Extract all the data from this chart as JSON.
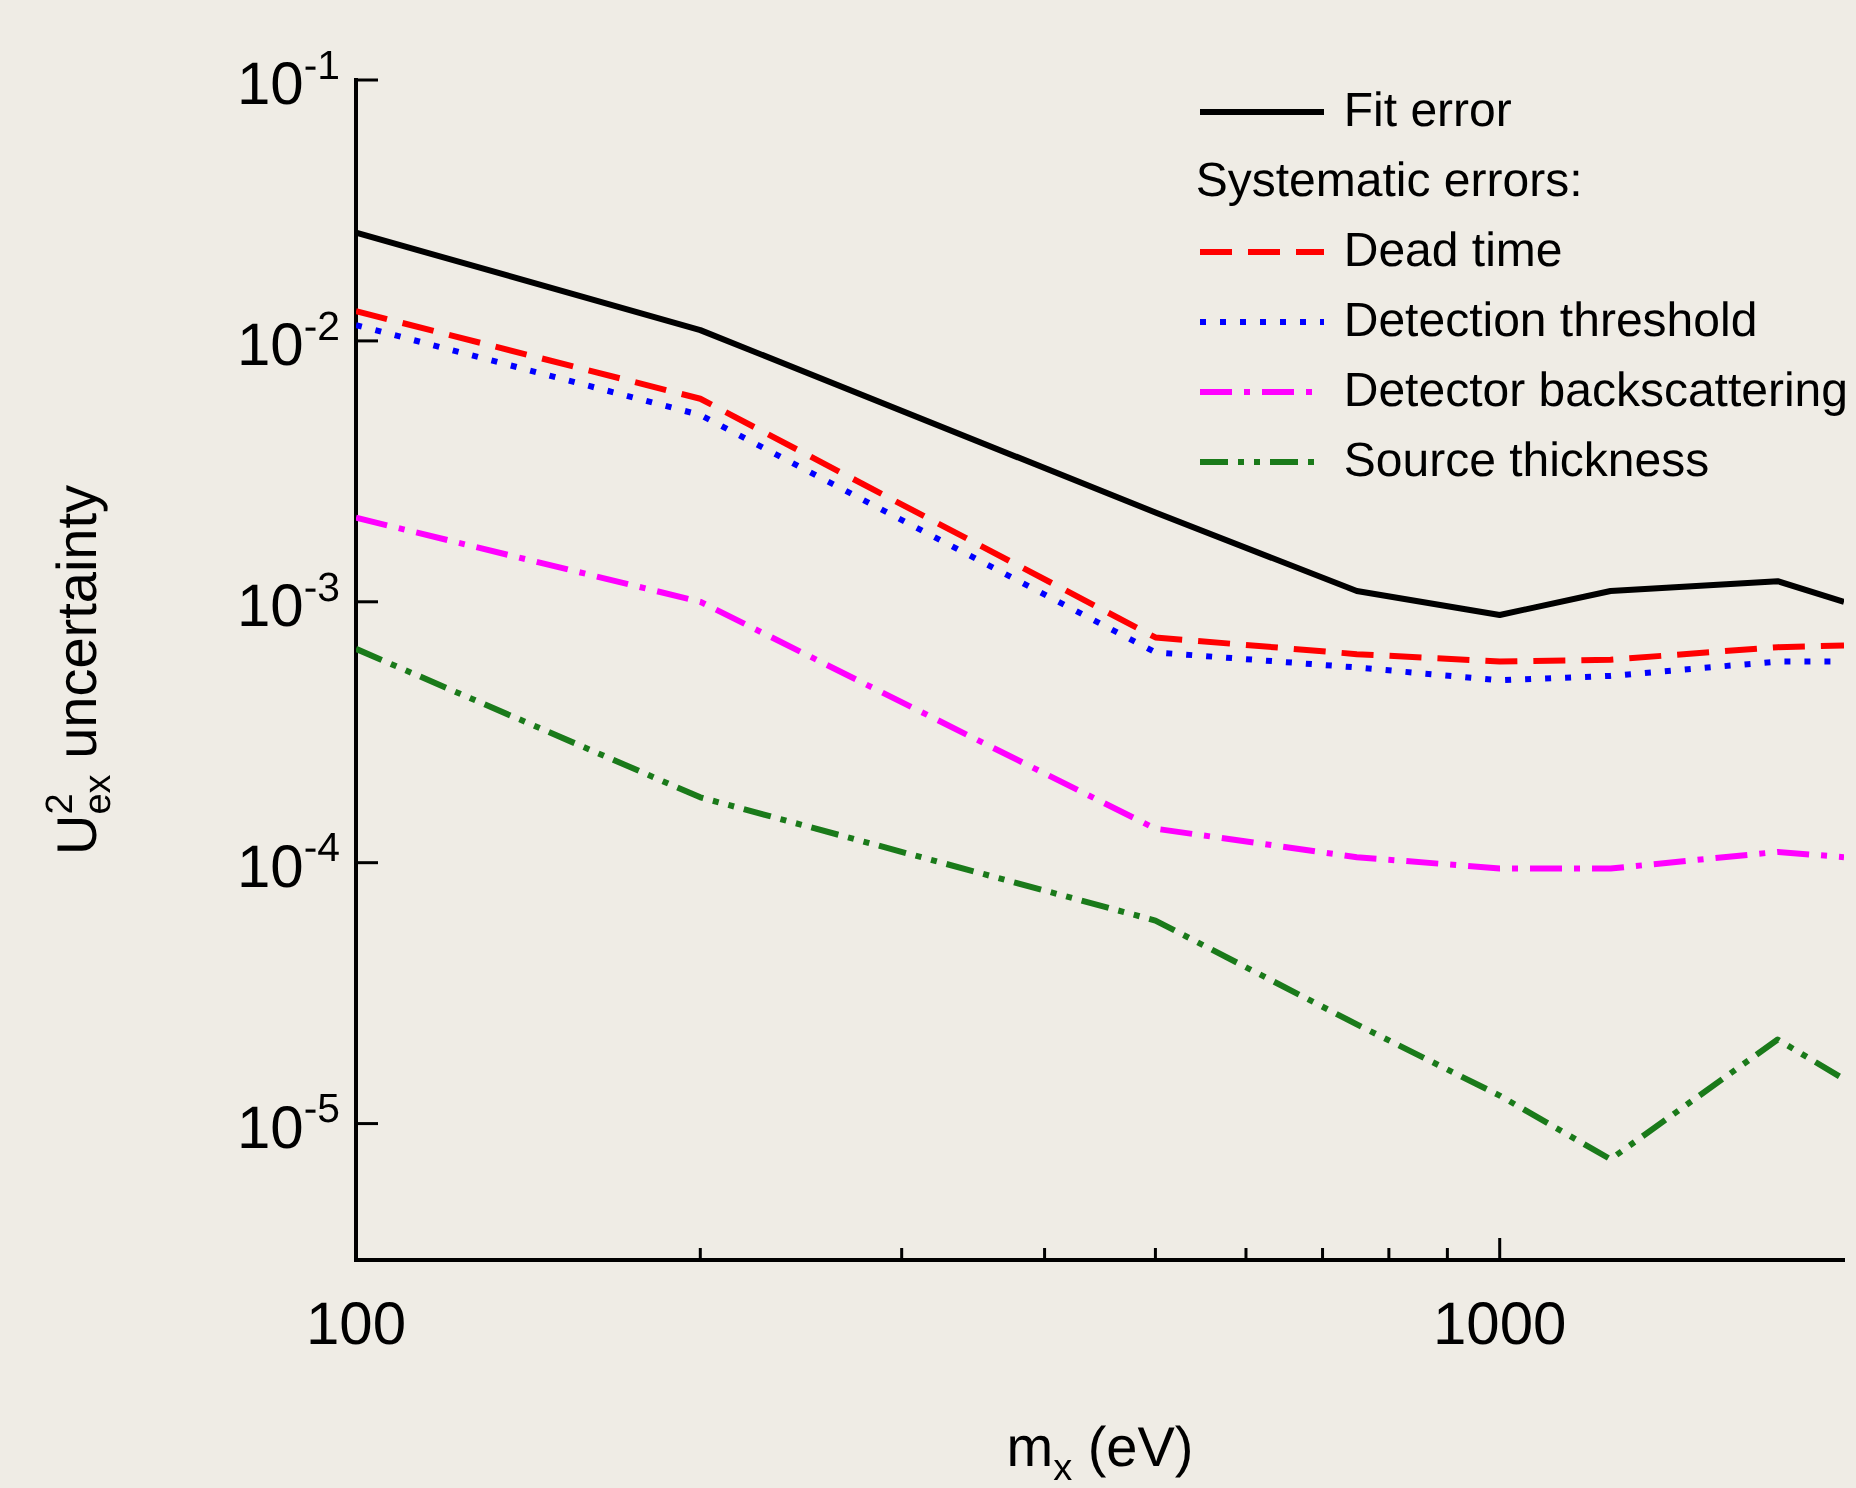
{
  "chart_data": {
    "type": "line",
    "xlabel": "m$_{x}$ (eV)",
    "ylabel": "U$^{2}$$_{ex}$ uncertainty",
    "log": "xy",
    "grid": false,
    "legend": "top right",
    "marker": "none",
    "annotations": [
      "Systematic errors:"
    ],
    "xlim": [
      100,
      2000
    ],
    "xticks": [
      100,
      {
        "value": 200,
        "label": null
      },
      {
        "value": 300,
        "label": null
      },
      {
        "value": 400,
        "label": null
      },
      {
        "value": 500,
        "label": null
      },
      {
        "value": 600,
        "label": null
      },
      {
        "value": 700,
        "label": null
      },
      {
        "value": 800,
        "label": null
      },
      {
        "value": 900,
        "label": null
      },
      1000
    ],
    "ylim": [
      3e-06,
      0.1
    ],
    "yticks": [
      {
        "value": 1e-05,
        "label": "10$^{-5}$"
      },
      {
        "value": 0.0001,
        "label": "10$^{-4}$"
      },
      {
        "value": 0.001,
        "label": "10$^{-3}$"
      },
      {
        "value": 0.01,
        "label": "10$^{-2}$"
      },
      {
        "value": 0.1,
        "label": "10$^{-1}$"
      }
    ],
    "x": [
      100,
      200,
      500,
      750,
      1000,
      1250,
      1750,
      2000
    ],
    "series": [
      {
        "name": "Fit error",
        "color": "#000000",
        "line_style": "solid",
        "values": [
          0.026,
          0.011,
          0.0022,
          0.0011,
          0.00089,
          0.0011,
          0.0012,
          0.001
        ]
      },
      {
        "name": "Dead time",
        "color": "#ff0000",
        "line_style": "dashed",
        "values": [
          0.013,
          0.006,
          0.00073,
          0.00063,
          0.00059,
          0.0006,
          0.00067,
          0.00068
        ]
      },
      {
        "name": "Detection threshold",
        "color": "#0000ff",
        "line_style": "dotted",
        "values": [
          0.0115,
          0.0052,
          0.00064,
          0.00056,
          0.0005,
          0.00052,
          0.00059,
          0.00059
        ]
      },
      {
        "name": "Detector backscattering",
        "color": "#ff00ff",
        "line_style": "dashdot",
        "values": [
          0.0021,
          0.001,
          0.000135,
          0.000105,
          9.5e-05,
          9.5e-05,
          0.00011,
          0.000105
        ]
      },
      {
        "name": "Source thickness",
        "color": "#1a7a1a",
        "line_style": "dashdotdot",
        "values": [
          0.00066,
          0.000178,
          6e-05,
          2.4e-05,
          1.28e-05,
          7.3e-06,
          2.1e-05,
          1.48e-05
        ]
      }
    ]
  }
}
